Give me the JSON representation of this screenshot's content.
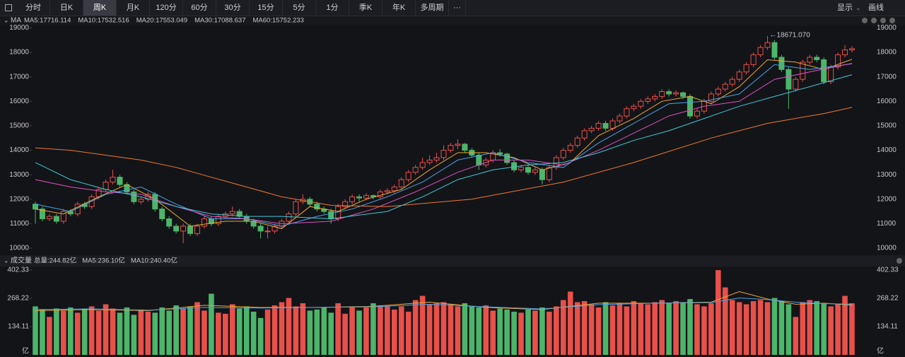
{
  "toolbar": {
    "tabs": [
      "分时",
      "日K",
      "周K",
      "月K",
      "120分",
      "60分",
      "30分",
      "15分",
      "5分",
      "1分",
      "季K",
      "年K",
      "多周期"
    ],
    "active": "周K",
    "more": "···",
    "right": [
      "显示",
      "画线"
    ]
  },
  "chart_data": [
    {
      "type": "candlestick",
      "title": "MA",
      "up_color": "#e8504a",
      "down_color": "#4cb56a",
      "ylim": [
        9800,
        19100
      ],
      "yticks": [
        10000,
        11000,
        12000,
        13000,
        14000,
        15000,
        16000,
        17000,
        18000,
        19000
      ],
      "max_label": "18671.070",
      "ohlc": [
        [
          11800,
          11900,
          11000,
          11600
        ],
        [
          11600,
          11700,
          11100,
          11200
        ],
        [
          11200,
          11400,
          11100,
          11300
        ],
        [
          11300,
          11400,
          11000,
          11100
        ],
        [
          11100,
          11600,
          11000,
          11500
        ],
        [
          11500,
          11600,
          11300,
          11400
        ],
        [
          11400,
          11900,
          11300,
          11800
        ],
        [
          11800,
          11900,
          11600,
          11700
        ],
        [
          11700,
          12200,
          11600,
          12100
        ],
        [
          12100,
          12500,
          12000,
          12400
        ],
        [
          12400,
          12800,
          12300,
          12700
        ],
        [
          12700,
          13200,
          12600,
          12900
        ],
        [
          12900,
          13000,
          12500,
          12600
        ],
        [
          12600,
          12700,
          12200,
          12300
        ],
        [
          12300,
          12400,
          11800,
          11900
        ],
        [
          11900,
          12100,
          11800,
          12000
        ],
        [
          12000,
          12300,
          11900,
          12200
        ],
        [
          12200,
          12300,
          11500,
          11600
        ],
        [
          11600,
          11700,
          11100,
          11200
        ],
        [
          11200,
          11300,
          10800,
          10900
        ],
        [
          10900,
          11000,
          10600,
          10700
        ],
        [
          10700,
          11000,
          10200,
          10900
        ],
        [
          10900,
          11000,
          10500,
          10600
        ],
        [
          10600,
          11000,
          10500,
          10900
        ],
        [
          10900,
          11300,
          10800,
          11200
        ],
        [
          11200,
          11300,
          10900,
          11000
        ],
        [
          11000,
          11400,
          10900,
          11300
        ],
        [
          11300,
          11500,
          11200,
          11400
        ],
        [
          11400,
          11700,
          11300,
          11500
        ],
        [
          11500,
          11600,
          11200,
          11300
        ],
        [
          11300,
          11400,
          11000,
          11100
        ],
        [
          11100,
          11200,
          10800,
          10900
        ],
        [
          10900,
          11000,
          10400,
          10700
        ],
        [
          10700,
          10900,
          10400,
          10700
        ],
        [
          10700,
          11000,
          10600,
          10900
        ],
        [
          10900,
          11200,
          10800,
          11100
        ],
        [
          11100,
          11500,
          11000,
          11400
        ],
        [
          11400,
          12000,
          11300,
          11900
        ],
        [
          11900,
          12200,
          11800,
          12000
        ],
        [
          12000,
          12100,
          11700,
          11800
        ],
        [
          11800,
          11900,
          11500,
          11600
        ],
        [
          11600,
          11700,
          11400,
          11500
        ],
        [
          11500,
          11600,
          11000,
          11200
        ],
        [
          11200,
          11800,
          11100,
          11700
        ],
        [
          11700,
          12000,
          11600,
          11900
        ],
        [
          11900,
          12200,
          11800,
          12100
        ],
        [
          12100,
          12200,
          11900,
          12050
        ],
        [
          12050,
          12250,
          11950,
          12150
        ],
        [
          12150,
          12200,
          12000,
          12100
        ],
        [
          12100,
          12400,
          12000,
          12300
        ],
        [
          12300,
          12450,
          12200,
          12350
        ],
        [
          12350,
          12600,
          12250,
          12500
        ],
        [
          12500,
          12900,
          12400,
          12800
        ],
        [
          12800,
          13200,
          12700,
          13100
        ],
        [
          13100,
          13400,
          13000,
          13300
        ],
        [
          13300,
          13700,
          13200,
          13500
        ],
        [
          13500,
          13800,
          13400,
          13600
        ],
        [
          13600,
          13900,
          13500,
          13700
        ],
        [
          13700,
          14200,
          13600,
          14000
        ],
        [
          14000,
          14300,
          13900,
          14200
        ],
        [
          14200,
          14450,
          14050,
          14250
        ],
        [
          14250,
          14300,
          13900,
          14000
        ],
        [
          14000,
          14100,
          13700,
          13800
        ],
        [
          13800,
          13900,
          13200,
          13400
        ],
        [
          13400,
          13700,
          13300,
          13600
        ],
        [
          13600,
          14000,
          13500,
          13900
        ],
        [
          13900,
          14050,
          13750,
          13850
        ],
        [
          13850,
          13900,
          13400,
          13500
        ],
        [
          13500,
          13600,
          13100,
          13200
        ],
        [
          13200,
          13400,
          13100,
          13300
        ],
        [
          13300,
          13400,
          13000,
          13100
        ],
        [
          13100,
          13300,
          13000,
          13200
        ],
        [
          13200,
          13300,
          12600,
          12800
        ],
        [
          12800,
          13400,
          12700,
          13300
        ],
        [
          13300,
          13800,
          13200,
          13700
        ],
        [
          13700,
          14100,
          13600,
          14000
        ],
        [
          14000,
          14300,
          13900,
          14200
        ],
        [
          14200,
          14600,
          14100,
          14500
        ],
        [
          14500,
          14900,
          14400,
          14800
        ],
        [
          14800,
          15000,
          14700,
          14900
        ],
        [
          14900,
          15200,
          14800,
          15100
        ],
        [
          15100,
          15200,
          14800,
          14900
        ],
        [
          14900,
          15300,
          14800,
          15200
        ],
        [
          15200,
          15500,
          15100,
          15400
        ],
        [
          15400,
          15800,
          15300,
          15700
        ],
        [
          15700,
          15900,
          15600,
          15800
        ],
        [
          15800,
          16100,
          15700,
          16000
        ],
        [
          16000,
          16200,
          15900,
          16100
        ],
        [
          16100,
          16300,
          16000,
          16200
        ],
        [
          16200,
          16500,
          16100,
          16400
        ],
        [
          16400,
          16500,
          16200,
          16300
        ],
        [
          16300,
          16450,
          16200,
          16350
        ],
        [
          16350,
          16400,
          16100,
          16200
        ],
        [
          16200,
          16300,
          15300,
          15400
        ],
        [
          15400,
          15700,
          15300,
          15600
        ],
        [
          15600,
          16100,
          15500,
          16000
        ],
        [
          16000,
          16400,
          15900,
          16300
        ],
        [
          16300,
          16600,
          16200,
          16500
        ],
        [
          16500,
          16800,
          16400,
          16700
        ],
        [
          16700,
          17000,
          16600,
          16900
        ],
        [
          16900,
          17300,
          16800,
          17200
        ],
        [
          17200,
          17600,
          17100,
          17500
        ],
        [
          17500,
          18000,
          17400,
          17900
        ],
        [
          17900,
          18300,
          17800,
          18200
        ],
        [
          18200,
          18671.07,
          18100,
          18400
        ],
        [
          18400,
          18500,
          17700,
          17800
        ],
        [
          17800,
          17900,
          17200,
          17300
        ],
        [
          17300,
          17400,
          15700,
          16500
        ],
        [
          16500,
          17000,
          16400,
          16900
        ],
        [
          16900,
          17700,
          16800,
          17600
        ],
        [
          17600,
          17900,
          17500,
          17800
        ],
        [
          17800,
          17900,
          17600,
          17700
        ],
        [
          17700,
          17800,
          16700,
          16800
        ],
        [
          16800,
          17500,
          16700,
          17400
        ],
        [
          17400,
          18000,
          17300,
          17900
        ],
        [
          17900,
          18300,
          17800,
          18100
        ],
        [
          18100,
          18250,
          18000,
          18150
        ]
      ],
      "series": [
        {
          "name": "MA5:17716.114",
          "color": "#f0a830",
          "x": [
            0,
            4,
            9,
            13,
            17,
            22,
            27,
            31,
            35,
            39,
            43,
            47,
            52,
            56,
            60,
            64,
            68,
            72,
            76,
            80,
            85,
            89,
            93,
            96,
            100,
            104,
            108,
            112,
            116
          ],
          "values": [
            11600,
            11400,
            12100,
            12600,
            12000,
            10900,
            11100,
            11100,
            10800,
            11700,
            11500,
            12000,
            12400,
            13200,
            13900,
            13900,
            13700,
            13200,
            13500,
            14600,
            15300,
            16000,
            16200,
            15900,
            16600,
            17700,
            17600,
            17300,
            17716.114
          ]
        },
        {
          "name": "MA10:17532.516",
          "color": "#4aa3e8",
          "x": [
            0,
            5,
            10,
            15,
            20,
            25,
            30,
            35,
            40,
            45,
            50,
            55,
            60,
            65,
            70,
            75,
            80,
            85,
            90,
            95,
            100,
            105,
            110,
            116
          ],
          "values": [
            11800,
            11500,
            12200,
            12500,
            11800,
            11200,
            11200,
            10900,
            11300,
            11600,
            12100,
            12700,
            13600,
            13900,
            13500,
            13300,
            14300,
            15100,
            15900,
            16000,
            16300,
            17500,
            17300,
            17532.516
          ]
        },
        {
          "name": "MA20:17553.049",
          "color": "#e050c0",
          "x": [
            0,
            5,
            10,
            15,
            20,
            25,
            30,
            35,
            42,
            48,
            54,
            60,
            65,
            70,
            75,
            80,
            85,
            90,
            95,
            100,
            105,
            110,
            116
          ],
          "values": [
            12800,
            12500,
            12300,
            12200,
            11700,
            11300,
            11200,
            11000,
            11100,
            11600,
            12300,
            13100,
            13600,
            13600,
            13400,
            14000,
            14700,
            15400,
            15800,
            16000,
            16900,
            17200,
            17553.049
          ]
        },
        {
          "name": "MA30:17088.637",
          "color": "#40c8d8",
          "x": [
            0,
            5,
            10,
            15,
            20,
            25,
            30,
            35,
            42,
            50,
            55,
            60,
            65,
            70,
            75,
            80,
            85,
            90,
            95,
            100,
            105,
            110,
            116
          ],
          "values": [
            13500,
            12800,
            12400,
            12100,
            11700,
            11400,
            11300,
            11300,
            11200,
            11500,
            12100,
            12800,
            13200,
            13400,
            13500,
            13900,
            14400,
            14800,
            15300,
            15800,
            16200,
            16600,
            17088.637
          ]
        },
        {
          "name": "MA60:15752.233",
          "color": "#f07a30",
          "x": [
            0,
            5,
            10,
            15,
            20,
            25,
            30,
            35,
            42,
            50,
            62,
            75,
            85,
            96,
            104,
            112,
            116
          ],
          "values": [
            14100,
            14000,
            13800,
            13600,
            13300,
            12900,
            12500,
            12100,
            11750,
            11700,
            12000,
            12700,
            13500,
            14500,
            15100,
            15500,
            15752.233
          ]
        }
      ]
    },
    {
      "type": "bar",
      "title": "成交量",
      "unit": "亿",
      "legend": "总量:244.82亿",
      "legend_color": "#e8504a",
      "ylim": [
        0,
        402.33
      ],
      "yticks": [
        134.11,
        268.22,
        402.33
      ],
      "values": [
        230,
        215,
        180,
        220,
        210,
        225,
        200,
        220,
        230,
        210,
        240,
        220,
        200,
        225,
        190,
        215,
        205,
        200,
        225,
        210,
        235,
        220,
        230,
        250,
        210,
        290,
        200,
        195,
        240,
        220,
        230,
        205,
        175,
        215,
        235,
        250,
        270,
        230,
        245,
        210,
        215,
        225,
        200,
        245,
        195,
        230,
        210,
        225,
        245,
        235,
        230,
        215,
        230,
        205,
        260,
        280,
        240,
        245,
        250,
        240,
        230,
        245,
        230,
        225,
        235,
        210,
        220,
        215,
        205,
        200,
        215,
        210,
        225,
        205,
        230,
        260,
        300,
        250,
        255,
        240,
        225,
        250,
        235,
        245,
        230,
        255,
        245,
        240,
        250,
        260,
        245,
        255,
        250,
        265,
        240,
        230,
        245,
        402,
        320,
        260,
        250,
        240,
        255,
        260,
        250,
        270,
        255,
        240,
        180,
        250,
        260,
        255,
        245,
        230,
        240,
        280,
        244.82
      ],
      "series": [
        {
          "name": "MA5:236.10亿",
          "color": "#f0a830",
          "x": [
            0,
            8,
            16,
            24,
            32,
            40,
            48,
            56,
            64,
            72,
            80,
            88,
            96,
            100,
            104,
            108,
            112,
            116
          ],
          "values": [
            210,
            215,
            210,
            235,
            225,
            225,
            230,
            250,
            225,
            215,
            245,
            245,
            250,
            300,
            265,
            240,
            245,
            236.1
          ]
        },
        {
          "name": "MA10:240.40亿",
          "color": "#4aa3e8",
          "x": [
            0,
            8,
            16,
            24,
            32,
            40,
            48,
            56,
            64,
            72,
            80,
            88,
            96,
            100,
            104,
            108,
            112,
            116
          ],
          "values": [
            215,
            218,
            212,
            225,
            222,
            225,
            228,
            240,
            228,
            218,
            238,
            245,
            248,
            270,
            262,
            250,
            243,
            240.4
          ]
        }
      ]
    }
  ]
}
